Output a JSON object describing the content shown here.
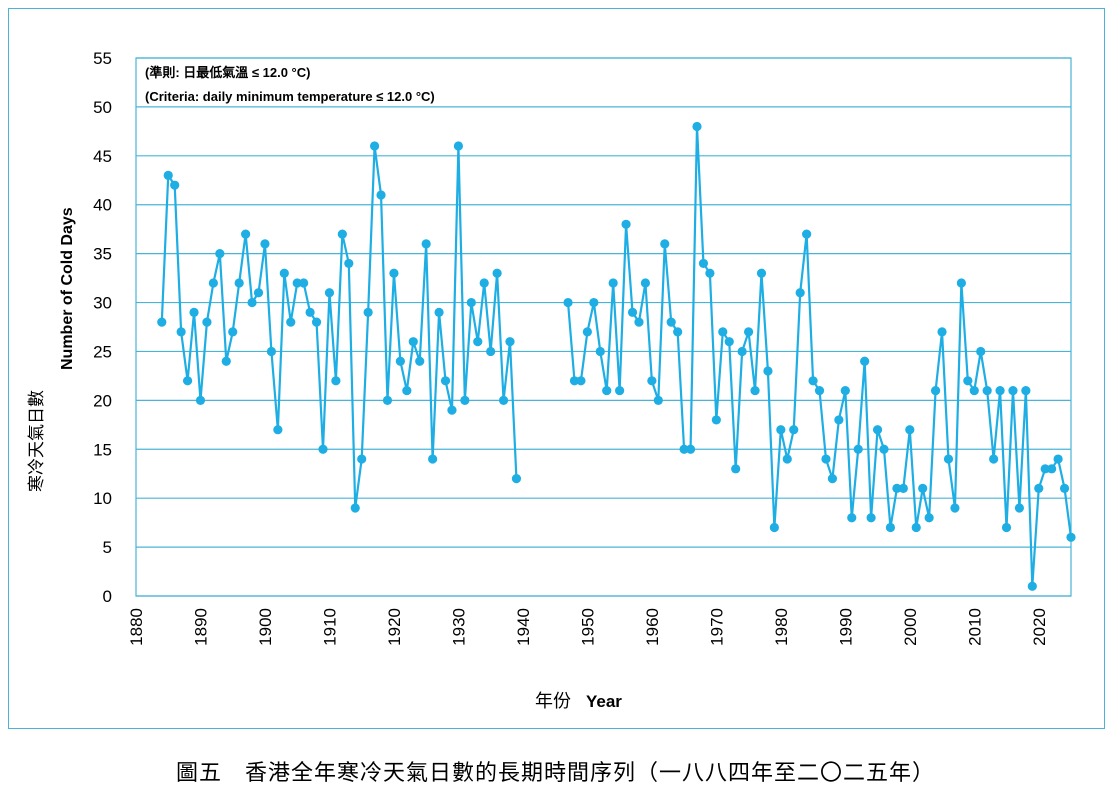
{
  "chart_data": {
    "type": "line",
    "title": "",
    "xlabel_zh": "年份",
    "xlabel": "Year",
    "ylabel_zh": "寒冷天氣日數",
    "ylabel": "Number of Cold Days",
    "note_zh": "(準則: 日最低氣溫 ≤ 12.0 °C)",
    "note_en": "(Criteria: daily minimum temperature ≤ 12.0 °C)",
    "xlim": [
      1880,
      2025
    ],
    "ylim": [
      0,
      55
    ],
    "xticks": [
      1880,
      1890,
      1900,
      1910,
      1920,
      1930,
      1940,
      1950,
      1960,
      1970,
      1980,
      1990,
      2000,
      2010,
      2020
    ],
    "yticks": [
      0,
      5,
      10,
      15,
      20,
      25,
      30,
      35,
      40,
      45,
      50,
      55
    ],
    "grid": "horizontal",
    "color": "#1eaee4",
    "series": [
      {
        "name": "1884-1939",
        "x_start": 1884,
        "values": [
          28,
          43,
          42,
          27,
          22,
          29,
          20,
          28,
          32,
          35,
          24,
          27,
          32,
          37,
          30,
          31,
          36,
          25,
          17,
          33,
          28,
          32,
          32,
          29,
          28,
          15,
          31,
          22,
          37,
          34,
          9,
          14,
          29,
          46,
          41,
          20,
          33,
          24,
          21,
          26,
          24,
          36,
          14,
          29,
          22,
          19,
          46,
          20,
          30,
          26,
          32,
          25,
          33,
          20,
          26,
          12
        ]
      },
      {
        "name": "1947-2025",
        "x_start": 1947,
        "values": [
          30,
          22,
          22,
          27,
          30,
          25,
          21,
          32,
          21,
          38,
          29,
          28,
          32,
          22,
          20,
          36,
          28,
          27,
          15,
          15,
          48,
          34,
          33,
          18,
          27,
          26,
          13,
          25,
          27,
          21,
          33,
          23,
          7,
          17,
          14,
          17,
          31,
          37,
          22,
          21,
          14,
          12,
          18,
          21,
          8,
          15,
          24,
          8,
          17,
          15,
          7,
          11,
          11,
          17,
          7,
          11,
          8,
          21,
          27,
          14,
          9,
          32,
          22,
          21,
          25,
          21,
          14,
          21,
          7,
          21,
          9,
          21,
          1,
          11,
          13,
          13,
          14,
          11,
          6
        ]
      }
    ]
  },
  "caption": "圖五　香港全年寒冷天氣日數的長期時間序列（一八八四年至二〇二五年）"
}
